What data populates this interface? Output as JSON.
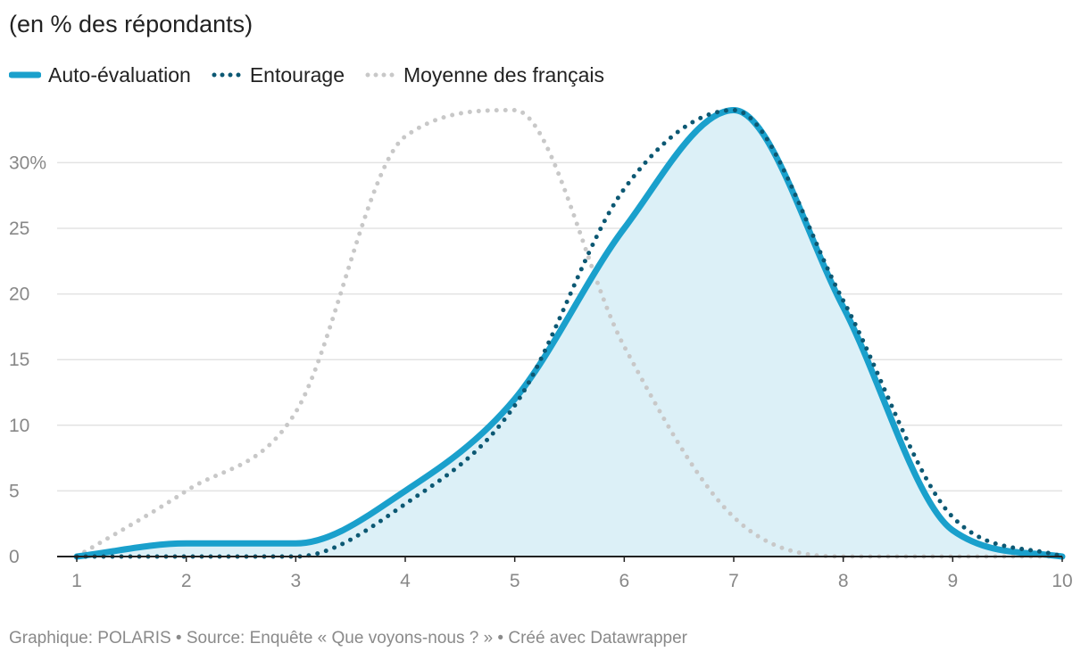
{
  "subtitle": "(en % des répondants)",
  "footer": "Graphique: POLARIS • Source: Enquête « Que voyons-nous ? » • Créé avec Datawrapper",
  "colors": {
    "auto": "#1aa0cc",
    "auto_fill": "#dcf0f7",
    "entourage": "#0c5873",
    "moyenne": "#c8c8c8",
    "grid": "#e3e3e3",
    "axis": "#222222"
  },
  "chart_data": {
    "type": "line",
    "title": "",
    "xlabel": "",
    "ylabel": "",
    "x": [
      1,
      2,
      3,
      4,
      5,
      6,
      7,
      8,
      9,
      10
    ],
    "xlim": [
      1,
      10
    ],
    "ylim": [
      0,
      34
    ],
    "x_ticks": [
      "1",
      "2",
      "3",
      "4",
      "5",
      "6",
      "7",
      "8",
      "9",
      "10"
    ],
    "y_ticks": [
      {
        "value": 0,
        "label": "0"
      },
      {
        "value": 5,
        "label": "5"
      },
      {
        "value": 10,
        "label": "10"
      },
      {
        "value": 15,
        "label": "15"
      },
      {
        "value": 20,
        "label": "20"
      },
      {
        "value": 25,
        "label": "25"
      },
      {
        "value": 30,
        "label": "30%"
      }
    ],
    "grid": true,
    "legend_placement": "top-left",
    "series": [
      {
        "name": "Auto-évaluation",
        "style": "solid",
        "fill": true,
        "values": [
          0,
          1,
          1,
          5,
          12,
          25,
          34,
          19,
          2,
          0
        ]
      },
      {
        "name": "Entourage",
        "style": "dotted",
        "values": [
          0,
          0,
          0,
          4,
          11.5,
          28,
          34,
          19.5,
          3,
          0
        ]
      },
      {
        "name": "Moyenne des français",
        "style": "dotted",
        "values": [
          0,
          5,
          11,
          32,
          34,
          16,
          3,
          0,
          0,
          0
        ]
      }
    ]
  }
}
